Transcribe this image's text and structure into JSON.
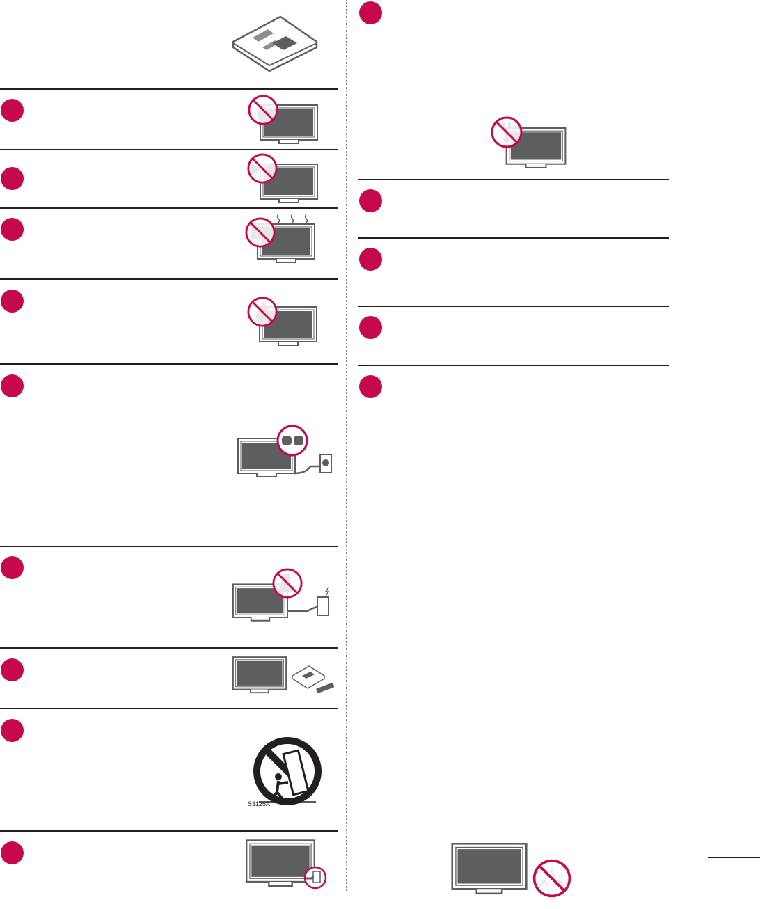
{
  "colors": {
    "accent": "#c6084c",
    "ink": "#231f20",
    "screen": "#5d5e60"
  },
  "left_items": [
    {
      "illustration": "no-liquid-tv"
    },
    {
      "illustration": "no-water-spray-tv"
    },
    {
      "illustration": "no-heat-tv"
    },
    {
      "illustration": "no-fire-tv"
    },
    {
      "illustration": "polarized-plug-tv"
    },
    {
      "illustration": "no-step-on-cord-tv"
    },
    {
      "illustration": "tv-with-accessories"
    },
    {
      "illustration": "cart-warning",
      "symbol_code": "S3125A"
    },
    {
      "illustration": "unplug-tv"
    }
  ],
  "right_items": [
    {
      "illustration": "no-self-service-tv"
    },
    {
      "illustration": "none"
    },
    {
      "illustration": "none"
    },
    {
      "illustration": "none"
    },
    {
      "illustration": "no-smell-smoke-tv"
    }
  ],
  "cart_symbol_code": "S3125A"
}
